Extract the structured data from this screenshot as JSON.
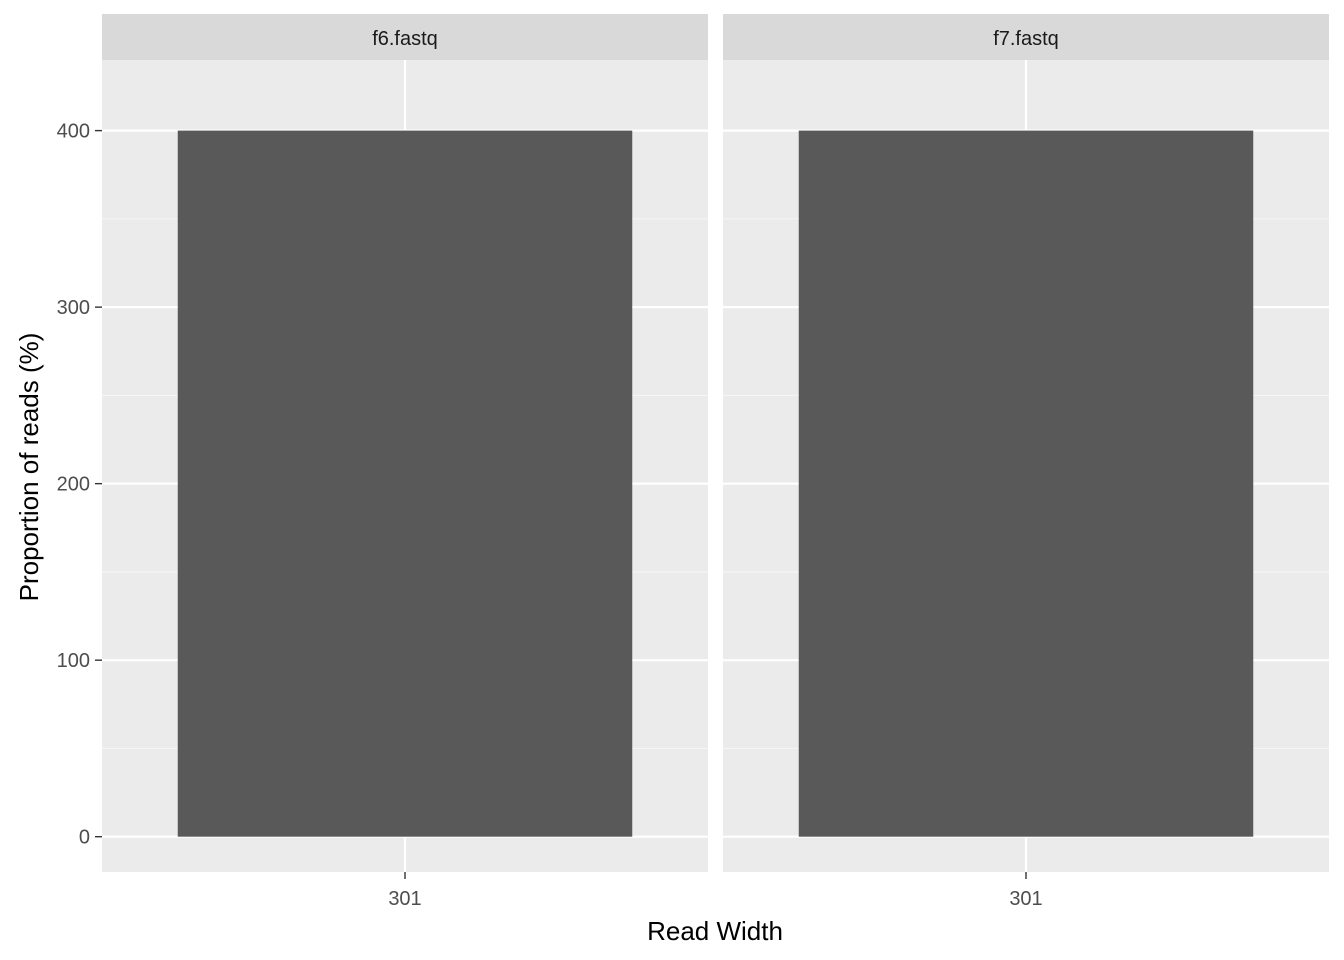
{
  "chart_data": {
    "type": "bar",
    "facet": "f6.fastq / f7.fastq",
    "xlabel": "Read Width",
    "ylabel": "Proportion of reads (%)",
    "ylim": [
      -20,
      440
    ],
    "y_ticks": [
      0,
      100,
      200,
      300,
      400
    ],
    "y_tick_labels": [
      "0",
      "100",
      "200",
      "300",
      "400"
    ],
    "grid": true,
    "panels": [
      {
        "strip": "f6.fastq",
        "categories": [
          "301"
        ],
        "values": [
          400
        ]
      },
      {
        "strip": "f7.fastq",
        "categories": [
          "301"
        ],
        "values": [
          400
        ]
      }
    ],
    "colors": {
      "panel_background": "#ebebeb",
      "strip_background": "#d9d9d9",
      "grid_major": "#ffffff",
      "grid_minor": "#f5f5f5",
      "bar": "#595959"
    }
  }
}
